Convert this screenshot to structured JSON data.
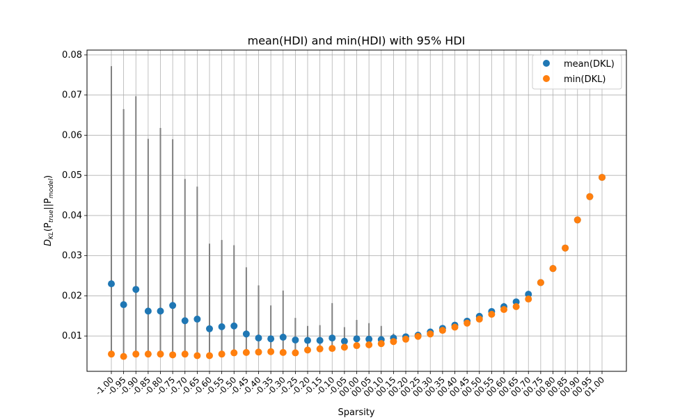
{
  "chart_data": {
    "type": "scatter",
    "title": "mean(HDI) and min(HDI) with 95% HDI",
    "xlabel": "Sparsity",
    "ylabel": "D_KL(P_true||P_model)",
    "ylabel_parts": {
      "main": "D",
      "sub1": "KL",
      "open": "(P",
      "sub2": "true",
      "mid": "||P",
      "sub3": "model",
      "close": ")"
    },
    "ylim": [
      0.0012,
      0.0812
    ],
    "yticks": [
      0.01,
      0.02,
      0.03,
      0.04,
      0.05,
      0.06,
      0.07,
      0.08
    ],
    "ytick_labels": [
      "0.01",
      "0.02",
      "0.03",
      "0.04",
      "0.05",
      "0.06",
      "0.07",
      "0.08"
    ],
    "grid": true,
    "legend_position": "top-right",
    "x": [
      "-1.00",
      "-0.95",
      "-0.90",
      "-0.85",
      "-0.80",
      "-0.75",
      "-0.70",
      "-0.65",
      "-0.60",
      "-0.55",
      "-0.50",
      "-0.45",
      "-0.40",
      "-0.35",
      "-0.30",
      "-0.25",
      "-0.20",
      "-0.15",
      "-0.10",
      "-0.05",
      "00.00",
      "00.05",
      "00.10",
      "00.15",
      "00.20",
      "00.25",
      "00.30",
      "00.35",
      "00.40",
      "00.45",
      "00.50",
      "00.55",
      "00.60",
      "00.65",
      "00.70",
      "00.75",
      "00.80",
      "00.85",
      "00.90",
      "00.95",
      "01.00"
    ],
    "series": [
      {
        "name": "mean(DKL)",
        "color": "#1f77b4",
        "values": [
          0.023,
          0.0178,
          0.0216,
          0.0162,
          0.0162,
          0.0176,
          0.0138,
          0.0142,
          0.0118,
          0.0123,
          0.0125,
          0.0105,
          0.0095,
          0.0093,
          0.0097,
          0.009,
          0.0089,
          0.0089,
          0.0095,
          0.0087,
          0.0093,
          0.0092,
          0.0091,
          0.0095,
          0.0098,
          0.0102,
          0.011,
          0.0119,
          0.0127,
          0.0137,
          0.0149,
          0.0161,
          0.0173,
          0.0185,
          0.0204,
          0.0233,
          0.0268,
          0.0319,
          0.0389,
          0.0447,
          0.0495
        ]
      },
      {
        "name": "min(DKL)",
        "color": "#ff7f0e",
        "values": [
          0.0055,
          0.0049,
          0.0055,
          0.0055,
          0.0055,
          0.0053,
          0.0055,
          0.0051,
          0.0051,
          0.0055,
          0.0058,
          0.0059,
          0.006,
          0.0061,
          0.0059,
          0.0058,
          0.0065,
          0.0068,
          0.0069,
          0.0072,
          0.0076,
          0.0078,
          0.0081,
          0.0086,
          0.0092,
          0.0099,
          0.0105,
          0.0114,
          0.0122,
          0.0132,
          0.0142,
          0.0154,
          0.0166,
          0.0173,
          0.0192,
          0.0233,
          0.0268,
          0.0319,
          0.0389,
          0.0447,
          0.0495
        ]
      }
    ],
    "hdi_upper": [
      0.0772,
      0.0665,
      0.0697,
      0.0591,
      0.0618,
      0.059,
      0.0491,
      0.0472,
      0.033,
      0.0339,
      0.0326,
      0.0271,
      0.0226,
      0.0176,
      0.0213,
      0.0145,
      0.0125,
      0.0127,
      0.0182,
      0.0122,
      0.014,
      0.0132,
      0.0125,
      0.0106,
      0.0106,
      0.011,
      0.0115,
      0.0123,
      0.013,
      0.0141,
      0.0152,
      0.0165,
      0.0182,
      0.019,
      0.0209,
      0.0238,
      0.0268,
      0.0319,
      0.0389,
      0.0447,
      0.0495
    ],
    "hdi_color": "#808080"
  }
}
